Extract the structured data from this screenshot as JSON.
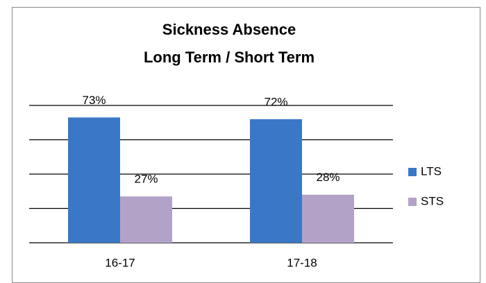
{
  "chart_data": {
    "type": "bar",
    "title": "Sickness Absence",
    "subtitle": "Long Term / Short Term",
    "categories": [
      "16-17",
      "17-18"
    ],
    "series": [
      {
        "name": "LTS",
        "color": "#3a78c6",
        "values": [
          73,
          72
        ],
        "value_labels": [
          "73%",
          "72%"
        ]
      },
      {
        "name": "STS",
        "color": "#b3a2c7",
        "values": [
          27,
          28
        ],
        "value_labels": [
          "27%",
          "28%"
        ]
      }
    ],
    "ylim": [
      0,
      80
    ],
    "yticks": [
      0,
      20,
      40,
      60,
      80
    ],
    "grid": true,
    "legend": "right"
  }
}
